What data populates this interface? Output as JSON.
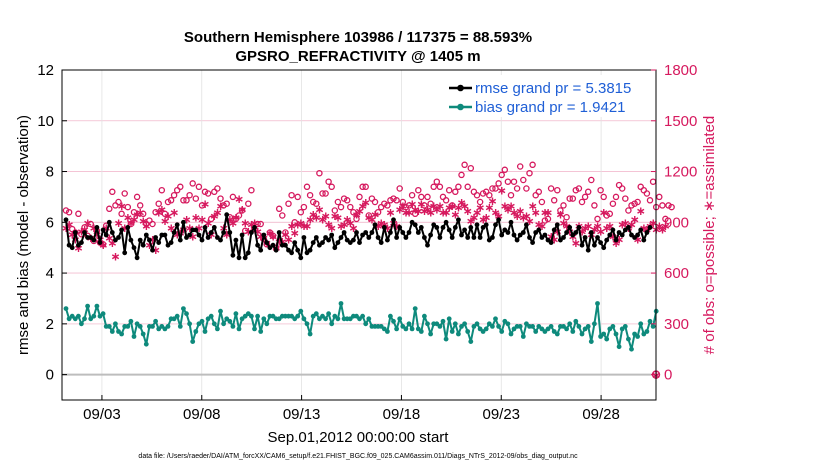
{
  "chart_data": {
    "type": "line",
    "title": "Southern Hemisphere 103986 / 117375 = 88.593%",
    "subtitle": "GPSRO_REFRACTIVITY @ 1405 m",
    "xlabel": "Sep.01,2012 00:00:00 start",
    "ylabel_left": "rmse and bias (model - observation)",
    "ylabel_right": "# of obs: o=possible; ∗=assimilated",
    "footnote": "data file: /Users/raeder/DAI/ATM_forcXX/CAM6_setup/f.e21.FHIST_BGC.f09_025.CAM6assim.011/Diags_NTrS_2012-09/obs_diag_output.nc",
    "x_ticks": [
      "09/03",
      "09/08",
      "09/13",
      "09/18",
      "09/23",
      "09/28"
    ],
    "x_range_days": [
      1.0,
      30.75
    ],
    "x_tick_days": [
      3,
      8,
      13,
      18,
      23,
      28
    ],
    "ylim_left": [
      -1,
      12
    ],
    "yticks_left": [
      "0",
      "2",
      "4",
      "6",
      "8",
      "10",
      "12"
    ],
    "ylim_right": [
      -150,
      1800
    ],
    "yticks_right": [
      "0",
      "300",
      "600",
      "900",
      "1200",
      "1500",
      "1800"
    ],
    "legend": [
      {
        "label": "rmse grand pr = 5.3815",
        "color": "#000000"
      },
      {
        "label": "bias grand pr = 1.9421",
        "color": "#0e8a7c"
      }
    ],
    "colors": {
      "rmse": "#000000",
      "bias": "#0e8a7c",
      "obs": "#d6195e",
      "right_axis": "#d6195e"
    },
    "series": [
      {
        "name": "rmse",
        "values": [
          6.1,
          5.1,
          5.0,
          5.6,
          5.1,
          5.2,
          5.6,
          5.4,
          5.4,
          5.3,
          5.8,
          5.2,
          5.7,
          5.5,
          6.0,
          5.6,
          5.3,
          5.4,
          5.7,
          4.8,
          5.8,
          5.3,
          5.0,
          4.6,
          5.3,
          5.1,
          5.5,
          5.3,
          4.9,
          5.4,
          5.2,
          5.5,
          5.5,
          5.1,
          5.2,
          5.6,
          5.9,
          5.3,
          6.0,
          5.4,
          5.5,
          5.7,
          5.7,
          5.5,
          5.3,
          5.8,
          5.4,
          5.6,
          5.8,
          5.4,
          5.3,
          5.6,
          6.3,
          5.6,
          4.7,
          5.3,
          4.6,
          5.5,
          4.6,
          4.8,
          5.6,
          5.8,
          5.1,
          4.9,
          5.5,
          5.2,
          5.0,
          5.1,
          4.9,
          5.6,
          5.1,
          5.1,
          4.9,
          4.8,
          5.2,
          4.9,
          4.6,
          5.4,
          4.8,
          4.9,
          5.2,
          5.4,
          5.1,
          5.2,
          5.4,
          5.3,
          5.5,
          5.0,
          5.2,
          5.4,
          5.6,
          5.3,
          5.2,
          5.3,
          5.6,
          5.2,
          5.5,
          5.6,
          5.4,
          5.6,
          5.9,
          5.4,
          5.2,
          5.8,
          5.3,
          5.6,
          6.1,
          5.4,
          5.8,
          5.6,
          5.4,
          5.6,
          6.0,
          5.9,
          5.6,
          5.8,
          5.4,
          5.1,
          5.5,
          5.9,
          5.8,
          5.4,
          5.8,
          6.0,
          5.7,
          5.4,
          5.8,
          6.1,
          5.5,
          5.7,
          5.4,
          5.8,
          5.4,
          5.9,
          5.4,
          5.8,
          5.9,
          5.3,
          5.4,
          5.9,
          6.1,
          5.5,
          5.7,
          5.6,
          6.0,
          5.5,
          5.3,
          5.5,
          5.6,
          5.9,
          5.4,
          5.2,
          5.6,
          5.7,
          5.4,
          5.5,
          5.3,
          5.2,
          5.7,
          5.9,
          5.3,
          5.4,
          5.6,
          5.8,
          5.5,
          5.6,
          5.8,
          5.1,
          5.4,
          4.9,
          5.6,
          5.1,
          5.4,
          5.2,
          5.0,
          5.3,
          5.5,
          5.7,
          5.3,
          5.6,
          5.5,
          5.7,
          5.8,
          5.5,
          5.4,
          5.5,
          5.7,
          5.3,
          5.6,
          5.8
        ]
      },
      {
        "name": "bias",
        "values": [
          2.6,
          2.2,
          2.3,
          2.2,
          2.3,
          2.0,
          2.2,
          2.7,
          2.2,
          2.3,
          2.7,
          2.3,
          2.4,
          1.9,
          1.9,
          1.7,
          2.0,
          1.7,
          1.6,
          1.9,
          1.9,
          2.1,
          1.5,
          2.0,
          1.9,
          1.6,
          1.2,
          1.9,
          1.9,
          2.1,
          1.8,
          1.9,
          1.8,
          1.9,
          2.2,
          2.2,
          2.3,
          1.9,
          2.6,
          2.4,
          2.0,
          1.3,
          1.7,
          2.0,
          2.1,
          1.7,
          2.2,
          2.3,
          2.0,
          1.8,
          2.5,
          2.0,
          2.2,
          2.1,
          1.9,
          2.4,
          1.8,
          2.2,
          2.3,
          2.4,
          2.3,
          1.8,
          2.3,
          1.7,
          2.2,
          2.0,
          2.3,
          2.3,
          2.2,
          2.2,
          2.3,
          2.3,
          2.3,
          2.3,
          2.2,
          2.3,
          2.5,
          2.2,
          2.0,
          1.6,
          2.3,
          2.4,
          2.2,
          2.3,
          2.2,
          2.4,
          2.0,
          2.3,
          2.2,
          2.8,
          2.2,
          2.2,
          2.2,
          2.3,
          2.3,
          2.2,
          2.3,
          2.0,
          2.2,
          1.9,
          1.9,
          1.9,
          1.9,
          1.8,
          1.7,
          2.3,
          2.1,
          1.8,
          2.2,
          1.9,
          1.8,
          2.0,
          1.8,
          2.6,
          1.8,
          1.7,
          2.3,
          2.0,
          1.6,
          2.0,
          2.0,
          1.9,
          2.1,
          1.4,
          2.2,
          1.7,
          2.0,
          1.6,
          1.9,
          2.0,
          1.7,
          1.3,
          1.9,
          2.0,
          1.8,
          1.7,
          1.8,
          2.0,
          1.9,
          2.2,
          1.9,
          1.7,
          2.1,
          2.0,
          1.6,
          1.8,
          1.9,
          1.9,
          1.5,
          2.0,
          1.9,
          1.9,
          1.7,
          1.9,
          1.8,
          1.7,
          1.8,
          1.9,
          1.7,
          1.6,
          1.9,
          1.9,
          1.8,
          2.0,
          1.7,
          2.1,
          1.9,
          1.6,
          1.8,
          1.9,
          1.3,
          2.0,
          2.8,
          1.5,
          1.6,
          1.4,
          1.8,
          1.9,
          1.6,
          1.1,
          1.8,
          1.9,
          1.4,
          1.0,
          1.6,
          1.5,
          2.0,
          1.6,
          1.7,
          2.1,
          1.9,
          2.5
        ]
      },
      {
        "name": "obs_possible",
        "values": [
          970,
          960,
          860,
          840,
          950,
          830,
          870,
          820,
          890,
          790,
          850,
          780,
          770,
          880,
          980,
          1080,
          1000,
          1020,
          950,
          1070,
          990,
          890,
          960,
          1050,
          1000,
          950,
          890,
          910,
          890,
          960,
          1010,
          1090,
          950,
          1020,
          1030,
          1060,
          1090,
          1110,
          1030,
          1030,
          1060,
          1130,
          1040,
          1110,
          1000,
          1080,
          1070,
          920,
          1080,
          1100,
          1040,
          1000,
          1010,
          930,
          1050,
          920,
          940,
          970,
          850,
          1010,
          1090,
          860,
          890,
          890,
          800,
          770,
          840,
          820,
          750,
          980,
          940,
          840,
          1010,
          1060,
          900,
          1050,
          960,
          990,
          1110,
          1060,
          1020,
          1010,
          1190,
          1070,
          1070,
          1140,
          1110,
          970,
          1020,
          990,
          1040,
          1030,
          990,
          960,
          920,
          1050,
          1110,
          1110,
          940,
          1040,
          1020,
          960,
          990,
          1010,
          1000,
          1030,
          1040,
          1030,
          1100,
          1020,
          990,
          1000,
          1060,
          950,
          1090,
          1050,
          1000,
          1050,
          1010,
          1110,
          1140,
          1110,
          1050,
          1030,
          1090,
          1000,
          1080,
          1110,
          1180,
          1240,
          1110,
          1220,
          1080,
          1060,
          1020,
          1070,
          1080,
          1060,
          1100,
          1100,
          1130,
          1180,
          1210,
          1140,
          1060,
          1140,
          1100,
          1230,
          1150,
          1100,
          1190,
          1240,
          1060,
          1080,
          1020,
          910,
          920,
          1100,
          1030,
          1090,
          970,
          1000,
          930,
          1040,
          1040,
          1090,
          1100,
          1020,
          1050,
          1080,
          1150,
          1000,
          920,
          1090,
          1050,
          940,
          950,
          1010,
          1050,
          1120,
          1100,
          1040,
          970,
          1000,
          1010,
          1020,
          1110,
          1090,
          1070,
          1030,
          1140,
          990,
          1050,
          1000,
          920,
          1000,
          990
        ]
      },
      {
        "name": "obs_assimilated",
        "values": [
          870,
          890,
          830,
          800,
          750,
          850,
          860,
          900,
          810,
          870,
          830,
          800,
          770,
          870,
          810,
          780,
          700,
          900,
          1000,
          870,
          930,
          900,
          920,
          950,
          960,
          910,
          880,
          770,
          800,
          740,
          960,
          980,
          910,
          940,
          870,
          960,
          830,
          840,
          860,
          920,
          870,
          820,
          930,
          870,
          920,
          1010,
          900,
          830,
          940,
          960,
          1000,
          870,
          830,
          920,
          900,
          930,
          1040,
          980,
          900,
          850,
          890,
          900,
          850,
          820,
          810,
          780,
          840,
          820,
          750,
          790,
          790,
          830,
          800,
          880,
          840,
          890,
          900,
          880,
          880,
          920,
          950,
          930,
          980,
          920,
          940,
          890,
          870,
          940,
          930,
          880,
          890,
          920,
          900,
          870,
          950,
          970,
          1000,
          1020,
          930,
          920,
          950,
          880,
          900,
          890,
          870,
          960,
          900,
          880,
          980,
          1000,
          960,
          960,
          1010,
          980,
          970,
          1010,
          970,
          980,
          960,
          1000,
          980,
          1000,
          960,
          960,
          990,
          1000,
          950,
          990,
          1020,
          1000,
          970,
          910,
          930,
          960,
          990,
          920,
          930,
          990,
          1030,
          960,
          940,
          1090,
          1000,
          980,
          1000,
          960,
          940,
          970,
          930,
          940,
          910,
          1000,
          960,
          890,
          880,
          960,
          960,
          820,
          800,
          850,
          950,
          900,
          880,
          850,
          820,
          780,
          880,
          850,
          870,
          880,
          830,
          860,
          880,
          850,
          960,
          870,
          880,
          820,
          780,
          800,
          890,
          900,
          870,
          890,
          920,
          800,
          970,
          870,
          860,
          880,
          900,
          860,
          880,
          860,
          880
        ]
      }
    ]
  }
}
